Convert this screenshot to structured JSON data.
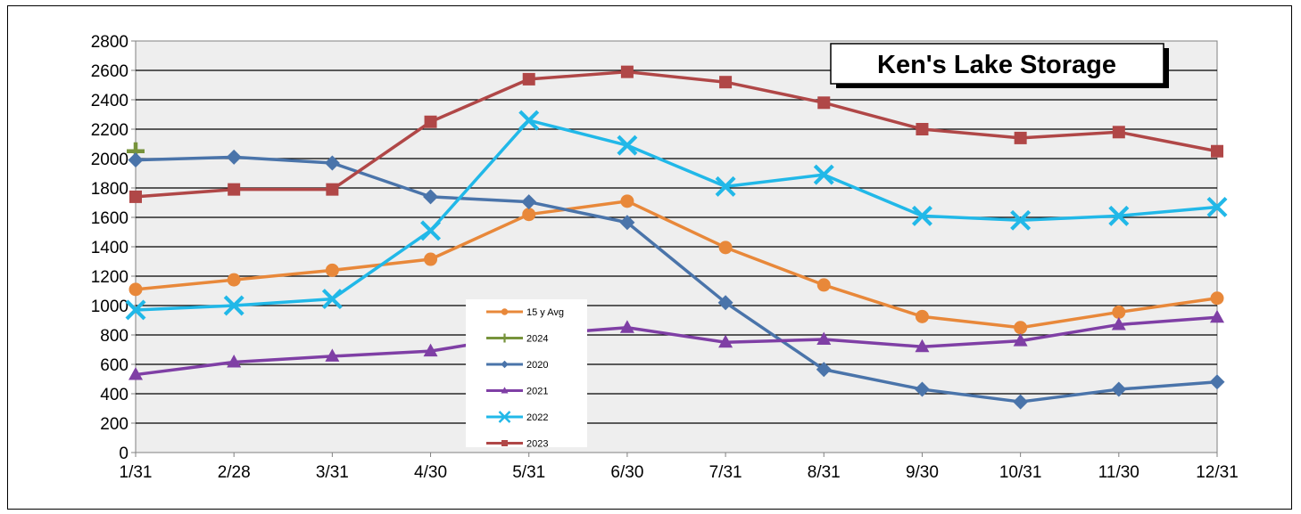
{
  "chart_data": {
    "type": "line",
    "title": "Ken's Lake Storage",
    "categories": [
      "1/31",
      "2/28",
      "3/31",
      "4/30",
      "5/31",
      "6/30",
      "7/31",
      "8/31",
      "9/30",
      "10/31",
      "11/30",
      "12/31"
    ],
    "ylim": [
      0,
      2800
    ],
    "yticks": [
      0,
      200,
      400,
      600,
      800,
      1000,
      1200,
      1400,
      1600,
      1800,
      2000,
      2200,
      2400,
      2600,
      2800
    ],
    "grid": true,
    "legend_position": "center",
    "series": [
      {
        "name": "15 y Avg",
        "color": "#e8883a",
        "marker": "circle",
        "values": [
          1110,
          1175,
          1240,
          1315,
          1620,
          1710,
          1395,
          1140,
          925,
          850,
          955,
          1050
        ]
      },
      {
        "name": "2024",
        "color": "#77933c",
        "marker": "plus",
        "values": [
          2050,
          null,
          null,
          null,
          null,
          null,
          null,
          null,
          null,
          null,
          null,
          null
        ]
      },
      {
        "name": "2020",
        "color": "#4a74aa",
        "marker": "diamond",
        "values": [
          1990,
          2010,
          1970,
          1740,
          1705,
          1565,
          1020,
          565,
          430,
          345,
          430,
          480
        ]
      },
      {
        "name": "2021",
        "color": "#7f3fa5",
        "marker": "triangle",
        "values": [
          530,
          615,
          655,
          690,
          800,
          850,
          750,
          770,
          720,
          760,
          870,
          920
        ]
      },
      {
        "name": "2022",
        "color": "#21b8e8",
        "marker": "x",
        "values": [
          970,
          1000,
          1045,
          1510,
          2260,
          2090,
          1810,
          1890,
          1610,
          1580,
          1610,
          1670
        ]
      },
      {
        "name": "2023",
        "color": "#b04747",
        "marker": "square",
        "values": [
          1740,
          1790,
          1790,
          2250,
          2540,
          2590,
          2520,
          2380,
          2200,
          2140,
          2180,
          2050
        ]
      }
    ]
  }
}
